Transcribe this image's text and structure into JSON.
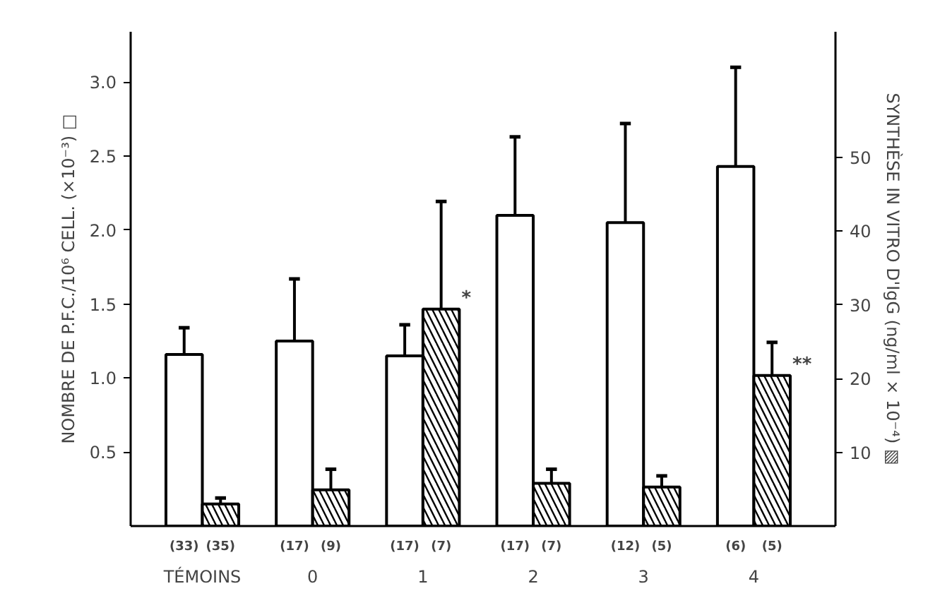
{
  "chart_data": {
    "type": "bar",
    "xlabel": null,
    "ylabel": "NOMBRE DE P.F.C./10⁶ CELL. (×10⁻³) □",
    "y2label": "SYNTHÈSE IN VITRO D'IgG (ng/ml × 10⁻⁴) ▧",
    "categories": [
      "TÉMOINS",
      "0",
      "1",
      "2",
      "3",
      "4"
    ],
    "series": [
      {
        "color": "#ffffff",
        "values": [
          1.16,
          1.25,
          1.15,
          2.1,
          2.05,
          2.43
        ],
        "errors": [
          0.18,
          0.42,
          0.21,
          0.53,
          0.67,
          0.67
        ]
      },
      {
        "color": "#ffffff",
        "axis": "y2",
        "values": [
          3.0,
          4.9,
          29.4,
          5.8,
          5.3,
          20.4
        ],
        "value_labels": [
          null,
          null,
          "*",
          null,
          null,
          "**"
        ],
        "errors": [
          0.8,
          2.8,
          14.6,
          1.9,
          1.5,
          4.5
        ]
      }
    ],
    "ylim": [
      0,
      3.34
    ],
    "yticks": [
      0.5,
      {
        "value": 1,
        "label": "1.0"
      },
      1.5,
      {
        "value": 2,
        "label": "2.0"
      },
      2.5,
      {
        "value": 3,
        "label": "3.0"
      }
    ],
    "y2lim": [
      0,
      67
    ],
    "y2ticks": [
      10,
      20,
      30,
      40,
      50
    ],
    "annotations": [
      "(33)",
      "(35)",
      "(17)",
      "(9)",
      "(17)",
      "(7)",
      "(17)",
      "(7)",
      "(12)",
      "(5)",
      "(6)",
      "(5)"
    ],
    "grid": false
  }
}
